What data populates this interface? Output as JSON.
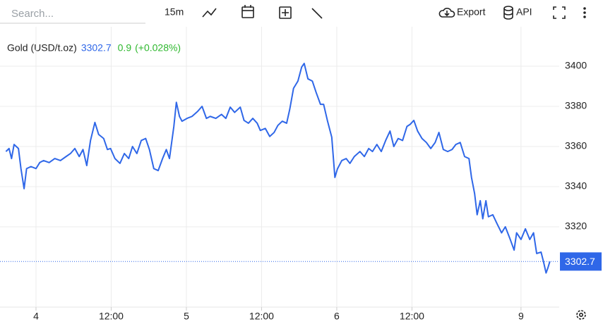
{
  "toolbar": {
    "search_placeholder": "Search...",
    "interval": "15m",
    "export": "Export",
    "api": "API"
  },
  "chart_data": {
    "type": "line",
    "title": "Gold (USD/t.oz)",
    "last_price": 3302.7,
    "change": 0.9,
    "change_percent_label": "(+0.028%)",
    "series": [
      {
        "name": "Gold (USD/t.oz)",
        "color": "#2f67e8",
        "x": [
          -4.8,
          -4.3,
          -3.9,
          -3.5,
          -2.8,
          -2.4,
          -1.9,
          -1.5,
          -0.8,
          0,
          0.6,
          1.2,
          2.1,
          3.0,
          3.9,
          4.8,
          5.5,
          6.2,
          6.9,
          7.5,
          8.1,
          8.7,
          9.4,
          10.0,
          10.8,
          11.4,
          11.9,
          12.6,
          13.4,
          14.1,
          14.8,
          15.4,
          16.1,
          16.8,
          17.5,
          18.1,
          18.8,
          19.5,
          20.2,
          20.8,
          21.3,
          22.0,
          22.4,
          22.9,
          23.3,
          24.1,
          24.9,
          25.8,
          26.5,
          27.2,
          27.8,
          28.7,
          29.6,
          30.3,
          31.0,
          31.7,
          32.6,
          33.2,
          33.9,
          34.6,
          35.3,
          35.8,
          36.6,
          37.3,
          38.0,
          38.6,
          39.3,
          40.0,
          40.5,
          41.1,
          41.8,
          42.4,
          42.8,
          43.4,
          44.1,
          44.7,
          45.4,
          45.9,
          46.5,
          47.2,
          47.7,
          48.1,
          48.8,
          49.5,
          50.1,
          50.8,
          51.7,
          52.4,
          53.1,
          53.7,
          54.4,
          55.1,
          55.8,
          56.5,
          57.1,
          57.8,
          58.5,
          59.2,
          59.7,
          60.3,
          60.9,
          61.6,
          62.3,
          63.0,
          63.7,
          64.3,
          65.0,
          65.7,
          66.4,
          67.0,
          67.7,
          68.4,
          69.1,
          69.5,
          70.0,
          70.4,
          70.9,
          71.3,
          71.8,
          72.2,
          72.9,
          73.6,
          74.3,
          74.9,
          75.6,
          76.3,
          76.7,
          77.4,
          78.1,
          78.8,
          79.4,
          79.9,
          80.6,
          81.0,
          81.4,
          81.7,
          82.0
        ],
        "values": [
          3357.5,
          3359,
          3354,
          3361,
          3359,
          3349,
          3339,
          3349,
          3350,
          3349,
          3352,
          3353,
          3352,
          3354,
          3353,
          3355,
          3356.5,
          3359,
          3355,
          3358.5,
          3350.5,
          3363,
          3372,
          3366,
          3364,
          3358.5,
          3359,
          3354,
          3351.6,
          3356.5,
          3354,
          3360,
          3356.5,
          3363,
          3364,
          3358.5,
          3349,
          3348,
          3354,
          3358.5,
          3354,
          3370,
          3382,
          3375,
          3372.6,
          3374,
          3375,
          3377.5,
          3380,
          3374,
          3375,
          3374,
          3376,
          3374,
          3379.6,
          3377,
          3379.6,
          3373,
          3371.6,
          3374,
          3371.6,
          3368,
          3369,
          3365,
          3367,
          3370.5,
          3372.6,
          3371.6,
          3378.6,
          3389,
          3392.6,
          3399.6,
          3401.4,
          3393.7,
          3392.6,
          3387,
          3381,
          3381,
          3373,
          3364.6,
          3344.6,
          3348.8,
          3353,
          3354,
          3351.6,
          3355,
          3357.5,
          3355,
          3359,
          3357.5,
          3361,
          3357.5,
          3363,
          3367.7,
          3360,
          3364,
          3363,
          3370,
          3371,
          3373,
          3367.7,
          3364,
          3362,
          3359,
          3362,
          3367,
          3358.5,
          3357.5,
          3358.5,
          3361,
          3362,
          3355,
          3354,
          3344.6,
          3336.5,
          3326,
          3333,
          3324,
          3333,
          3325,
          3326,
          3321.4,
          3317,
          3320,
          3314.4,
          3308.4,
          3317,
          3313.7,
          3319,
          3313.7,
          3317,
          3306.7,
          3307.4,
          3302.5,
          3297,
          3299.6,
          3302.7
        ]
      }
    ],
    "xlim": [
      -5,
      83.5
    ],
    "xticks": [
      {
        "value": 0,
        "label": "4"
      },
      {
        "value": 12,
        "label": "12:00"
      },
      {
        "value": 24,
        "label": "5"
      },
      {
        "value": 36,
        "label": "12:00"
      },
      {
        "value": 48,
        "label": "6"
      },
      {
        "value": 60,
        "label": "12:00"
      },
      {
        "value": 77.4,
        "label": "9"
      }
    ],
    "ylim": [
      3280,
      3420
    ],
    "yticks": [
      3320,
      3340,
      3360,
      3380,
      3400
    ],
    "grid": true
  }
}
